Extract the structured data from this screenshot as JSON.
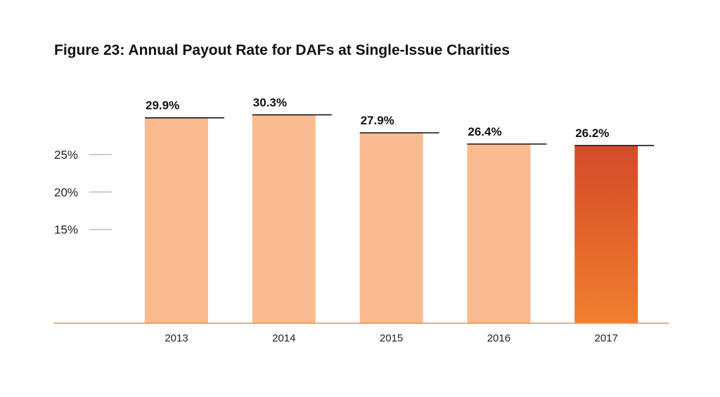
{
  "chart_data": {
    "type": "bar",
    "title": "Figure 23: Annual Payout Rate for DAFs at Single-Issue Charities",
    "categories": [
      "2013",
      "2014",
      "2015",
      "2016",
      "2017"
    ],
    "values": [
      29.9,
      30.3,
      27.9,
      26.4,
      26.2
    ],
    "value_labels": [
      "29.9%",
      "30.3%",
      "27.9%",
      "26.4%",
      "26.2%"
    ],
    "y_ticks": [
      {
        "value": 15,
        "label": "15%"
      },
      {
        "value": 20,
        "label": "20%"
      },
      {
        "value": 25,
        "label": "25%"
      }
    ],
    "ylim": [
      2.5,
      30.9
    ],
    "xlabel": "",
    "ylabel": "",
    "grid": false,
    "legend": "none",
    "colors": {
      "bar": "#f9bb8f",
      "highlight_top": "#d44a29",
      "highlight_bottom": "#f07f2e",
      "axis": "#f08a4b",
      "tick": "#bbbbbb",
      "value_line": "#111111"
    },
    "highlight_index": 4
  }
}
